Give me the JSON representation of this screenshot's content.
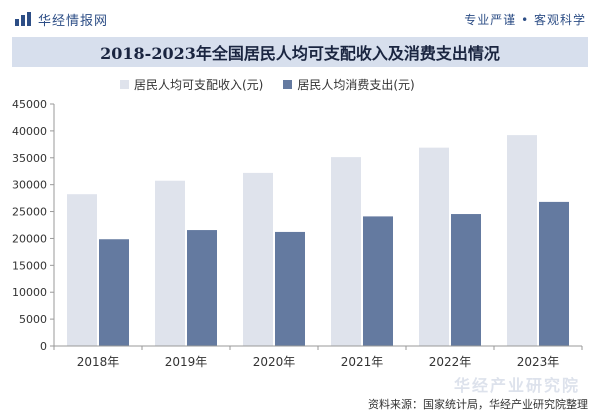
{
  "header": {
    "brand": "华经情报网",
    "slogan": "专业严谨 • 客观科学"
  },
  "colors": {
    "series1": "#dfe3ec",
    "series2": "#647aa0",
    "axis": "#999999",
    "title_bg": "#d7dfed"
  },
  "chart_data": {
    "type": "bar",
    "title": "2018-2023年全国居民人均可支配收入及消费支出情况",
    "categories": [
      "2018年",
      "2019年",
      "2020年",
      "2021年",
      "2022年",
      "2023年"
    ],
    "series": [
      {
        "name": "居民人均可支配收入(元)",
        "values": [
          28228,
          30733,
          32189,
          35128,
          36883,
          39218
        ]
      },
      {
        "name": "居民人均消费支出(元)",
        "values": [
          19853,
          21559,
          21210,
          24100,
          24538,
          26796
        ]
      }
    ],
    "ylim": [
      0,
      45000
    ],
    "yticks": [
      0,
      5000,
      10000,
      15000,
      20000,
      25000,
      30000,
      35000,
      40000,
      45000
    ],
    "legend": "top",
    "grid": false
  },
  "footer": {
    "source": "资料来源：国家统计局，华经产业研究院整理",
    "watermark": "华经产业研究院"
  }
}
